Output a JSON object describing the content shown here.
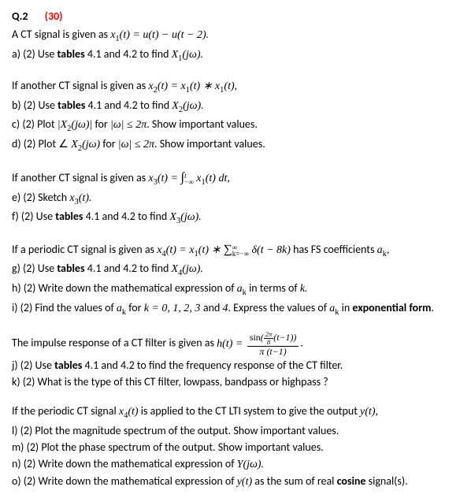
{
  "header": {
    "q_num": "Q.2",
    "points": "(30)"
  },
  "s1": {
    "intro": "A CT signal is given as ",
    "eq1_lhs": "x",
    "eq1_sub": "1",
    "eq1_arg": "(t) = u(t) − u(t − 2).",
    "a": "a) (2) Use ",
    "a_bold": "tables",
    "a_rest": " 4.1 and 4.2 to find ",
    "a_fn": "X",
    "a_fn_sub": "1",
    "a_fn_arg": "(jω)."
  },
  "s2": {
    "intro": "If another CT signal is given as  ",
    "eq_lhs": "x",
    "eq_sub": "2",
    "eq_mid": "(t) = x",
    "eq_sub2": "1",
    "eq_mid2": "(t) ∗ x",
    "eq_sub3": "1",
    "eq_end": "(t),",
    "b": "b) (2) Use ",
    "b_bold": "tables",
    "b_rest": " 4.1 and 4.2 to find ",
    "b_fn": "X",
    "b_fn_sub": "2",
    "b_fn_arg": "(jω).",
    "c": "c) (2) Plot ",
    "c_expr_open": "|X",
    "c_sub": "2",
    "c_expr_mid": "(jω)|",
    "c_for": " for ",
    "c_cond": "|ω| ≤ 2π",
    "c_end": ". Show important values.",
    "d": "d) (2) Plot ",
    "d_angle": "∠ ",
    "d_fn": "X",
    "d_sub": "2",
    "d_arg": "(jω)",
    "d_for": " for ",
    "d_cond": "|ω| ≤ 2π",
    "d_end": ". Show important values."
  },
  "s3": {
    "intro": "If another CT signal is given as  ",
    "eq_lhs": "x",
    "eq_sub": "3",
    "eq_eq": "(t) = ",
    "int_lo": "−∞",
    "int_hi": "t",
    "int_body_x": "x",
    "int_body_sub": "1",
    "int_body_rest": "(t) dt,",
    "e": "e) (2) Sketch ",
    "e_fn": "x",
    "e_sub": "3",
    "e_arg": "(t).",
    "f": "f) (2) Use ",
    "f_bold": "tables",
    "f_rest": " 4.1 and 4.2 to find ",
    "f_fn": "X",
    "f_sub2": "3",
    "f_arg": "(jω)."
  },
  "s4": {
    "intro": "If a periodic CT signal is given as  ",
    "eq_lhs": "x",
    "eq_sub": "4",
    "eq_eq": "(t) = x",
    "eq_sub2": "1",
    "eq_mid": "(t) ∗ ",
    "sum_lo": "k=−∞",
    "sum_hi": "∞",
    "sum_body": "δ(t − 8k)",
    "tail_txt": " has FS coefficients ",
    "tail_a": "a",
    "tail_a_sub": "k",
    "tail_comma": ",",
    "g": "g) (2) Use ",
    "g_bold": "tables",
    "g_rest": " 4.1 and 4.2 to find ",
    "g_fn": "X",
    "g_sub": "4",
    "g_arg": "(jω).",
    "h": "h) (2) Write down the mathematical expression of ",
    "h_a": "a",
    "h_a_sub": "k",
    "h_rest": " in terms of ",
    "h_k": "k.",
    "i": "i) (2) Find the values of ",
    "i_a": "a",
    "i_a_sub": "k",
    "i_for": " for ",
    "i_kvals": "k = 0, 1, 2, 3 ",
    "i_and": "and ",
    "i_four": "4",
    "i_rest": ". Express the values of ",
    "i_a2": "a",
    "i_a2_sub": "k",
    "i_in": " in ",
    "i_bold": "exponential form",
    "i_dot": "."
  },
  "s5": {
    "intro": "The impulse response of a CT filter is given as ",
    "h_lhs": "h(t) = ",
    "num_sin": "sin",
    "num_open": "(",
    "num_frac_top": "2π",
    "num_frac_bot": "8",
    "num_rest": "(t−1))",
    "den": "π (t−1)",
    "dot": ".",
    "j": "j) (2) Use ",
    "j_bold": "tables",
    "j_rest": " 4.1 and 4.2 to find the frequency response of the CT filter.",
    "k": "k) (2) What is the type of this CT filter, lowpass, bandpass or highpass ?"
  },
  "s6": {
    "intro": "If the periodic CT signal ",
    "intro_x": "x",
    "intro_sub": "4",
    "intro_arg": "(t)",
    "intro_rest": " is applied to the CT LTI system to give the output ",
    "intro_y": "y(t),",
    "l": "l) (2) Plot the magnitude spectrum of the output. Show important values.",
    "m": "m) (2) Plot the phase spectrum of the output. Show important values.",
    "n": "n) (2) Write down the mathematical expression of ",
    "n_Y": "Y(jω).",
    "o": "o) (2) Write down the mathematical expression of ",
    "o_y": "y(t)",
    "o_rest": " as the sum of real ",
    "o_bold": "cosine",
    "o_end": " signal(s)."
  }
}
